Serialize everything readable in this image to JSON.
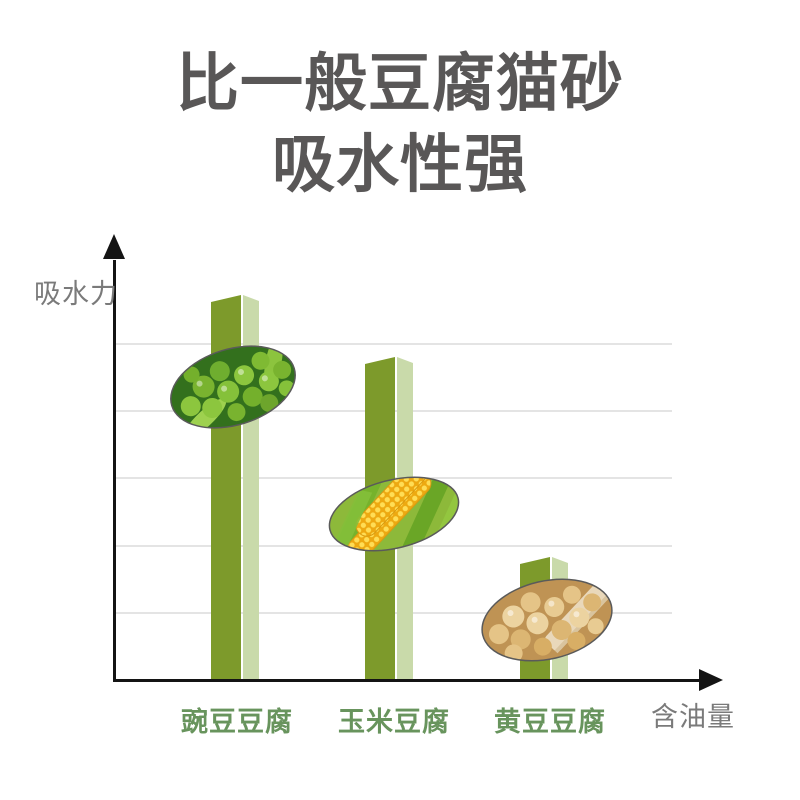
{
  "title": {
    "line1": "比一般豆腐猫砂",
    "line2": "吸水性强"
  },
  "chart_data": {
    "type": "bar",
    "title": "比一般豆腐猫砂 吸水性强",
    "categories": [
      "豌豆豆腐",
      "玉米豆腐",
      "黄豆豆腐"
    ],
    "values": [
      100,
      84,
      32
    ],
    "series_note": "relative water absorption, unlabeled axis (higher bar = stronger absorption)",
    "xlabel": "含油量",
    "ylabel": "吸水力",
    "ylim": [
      0,
      100
    ],
    "grid": true,
    "gridline_count": 5,
    "legend": null,
    "bar_images": [
      "peas",
      "corn",
      "soybeans"
    ]
  },
  "colors": {
    "title_text": "#595757",
    "bar_front": "#7d9a2b",
    "bar_side": "#c9daaa",
    "category_label": "#68945d",
    "axis": "#141414",
    "axis_label": "#7a7a7a",
    "gridline": "#e4e4e4"
  }
}
